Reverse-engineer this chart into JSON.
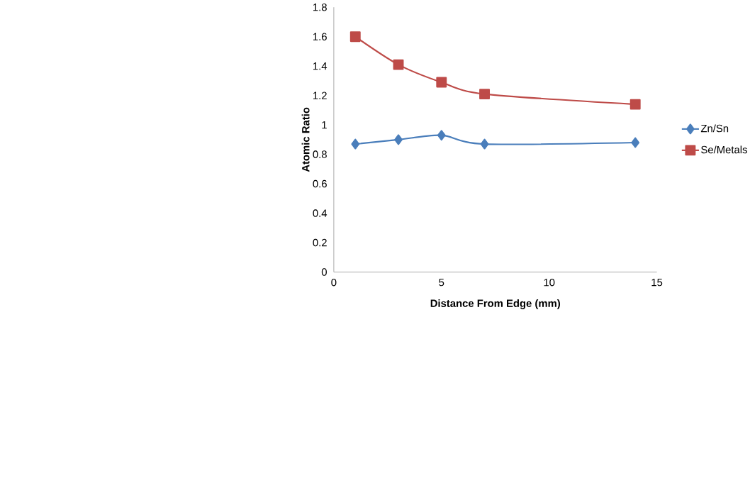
{
  "chart_data": {
    "type": "line",
    "xlabel": "Distance From Edge (mm)",
    "ylabel": "Atomic Ratio",
    "x": [
      1,
      3,
      5,
      7,
      14
    ],
    "series": [
      {
        "name": "Zn/Sn",
        "color": "#4a7ebb",
        "marker": "diamond",
        "values": [
          0.87,
          0.9,
          0.93,
          0.87,
          0.88
        ]
      },
      {
        "name": "Se/Metals",
        "color": "#be4b48",
        "marker": "square",
        "values": [
          1.6,
          1.41,
          1.29,
          1.21,
          1.14
        ]
      }
    ],
    "xlim": [
      0,
      15
    ],
    "xticks": [
      0,
      5,
      10,
      15
    ],
    "ylim": [
      0,
      1.8
    ],
    "yticks": [
      0,
      0.2,
      0.4,
      0.6,
      0.8,
      1,
      1.2,
      1.4,
      1.6,
      1.8
    ],
    "grid": false,
    "legend": "right",
    "line_style": "solid"
  }
}
